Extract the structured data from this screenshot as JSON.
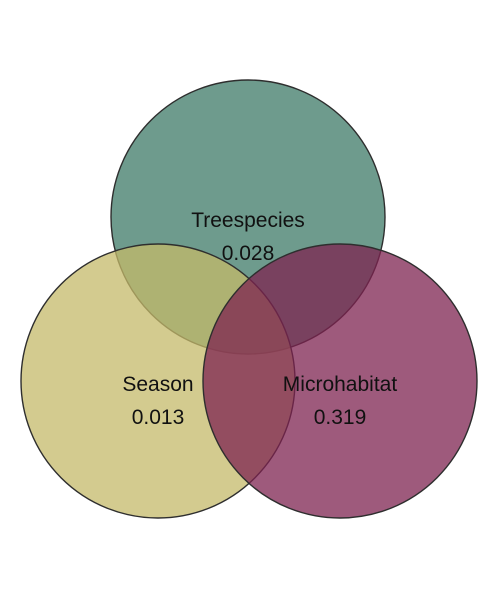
{
  "diagram": {
    "type": "venn",
    "sets": [
      {
        "key": "treespecies",
        "label": "Treespecies",
        "value": "0.028",
        "color": "#3e7a67"
      },
      {
        "key": "season",
        "label": "Season",
        "value": "0.013",
        "color": "#c4ba6a"
      },
      {
        "key": "microhabitat",
        "label": "Microhabitat",
        "value": "0.319",
        "color": "#7e2350"
      }
    ],
    "fill_opacity": 0.75,
    "stroke_color": "#2e2e2e"
  }
}
